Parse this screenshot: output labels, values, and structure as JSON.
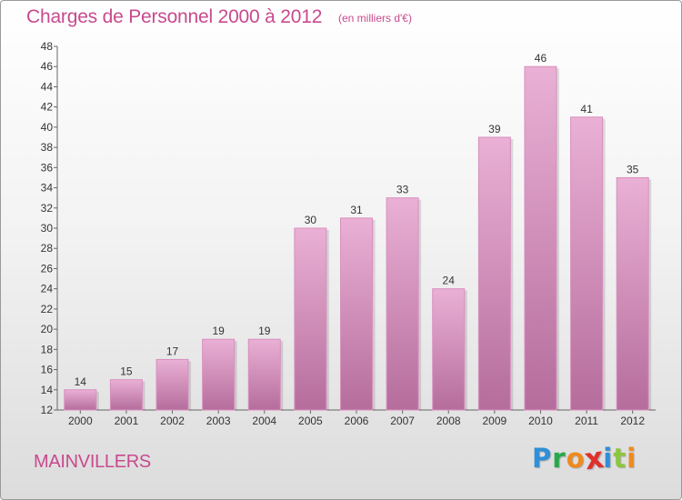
{
  "header": {
    "title": "Charges de Personnel 2000 à 2012",
    "subtitle": "(en milliers d'€)"
  },
  "footer": {
    "commune": "MAINVILLERS",
    "logo": {
      "letters": [
        "P",
        "r",
        "o",
        "x",
        "i",
        "t",
        "i"
      ],
      "colors": [
        "#2f8fd8",
        "#2aa84a",
        "#f08a1c",
        "#e0312c",
        "#2f8fd8",
        "#8cc63e",
        "#f08a1c"
      ]
    }
  },
  "colors": {
    "bar_top": "#eab0d5",
    "bar_bottom": "#b56d9c",
    "bar_stroke": "#d98fbe",
    "text": "#333333",
    "grid_tick": "#666666"
  },
  "chart_data": {
    "type": "bar",
    "title": "Charges de Personnel 2000 à 2012",
    "subtitle": "(en milliers d'€)",
    "categories": [
      "2000",
      "2001",
      "2002",
      "2003",
      "2004",
      "2005",
      "2006",
      "2007",
      "2008",
      "2009",
      "2010",
      "2011",
      "2012"
    ],
    "values": [
      14,
      15,
      17,
      19,
      19,
      30,
      31,
      33,
      24,
      39,
      46,
      41,
      35
    ],
    "ylim": [
      12,
      48
    ],
    "yticks": [
      12,
      14,
      16,
      18,
      20,
      22,
      24,
      26,
      28,
      30,
      32,
      34,
      36,
      38,
      40,
      42,
      44,
      46,
      48
    ],
    "data_labels": true,
    "grid": false
  }
}
